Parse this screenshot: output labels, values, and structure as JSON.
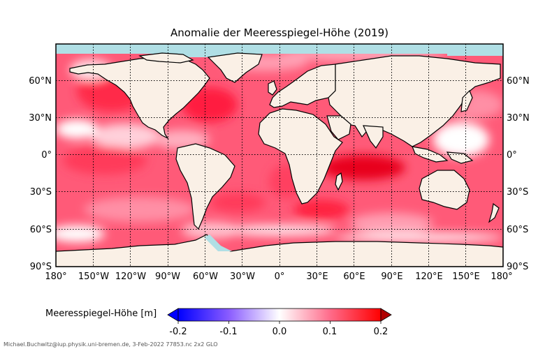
{
  "title": "Anomalie der Meeresspiegel-Höhe (2019)",
  "lat_labels": [
    "60°N",
    "30°N",
    "0°",
    "30°S",
    "60°S",
    "90°S"
  ],
  "lon_labels": [
    "180°",
    "150°W",
    "120°W",
    "90°W",
    "60°W",
    "30°W",
    "0°",
    "30°E",
    "60°E",
    "90°E",
    "120°E",
    "150°E",
    "180°"
  ],
  "colorbar": {
    "label": "Meeresspiegel-Höhe [m]",
    "ticks": [
      "-0.2",
      "-0.1",
      "0.0",
      "0.1",
      "0.2"
    ],
    "range": [
      -0.2,
      0.2
    ],
    "colors": [
      "#0000ff",
      "#ffffff",
      "#ff0000"
    ]
  },
  "colors": {
    "land": "#faf0e6",
    "sea_ice": "#b0dfe5",
    "ocean_positive": "#ff3050"
  },
  "credit": "Michael.Buchwitz@iup.physik.uni-bremen.de, 3-Feb-2022 77853.nc 2x2 GLO"
}
